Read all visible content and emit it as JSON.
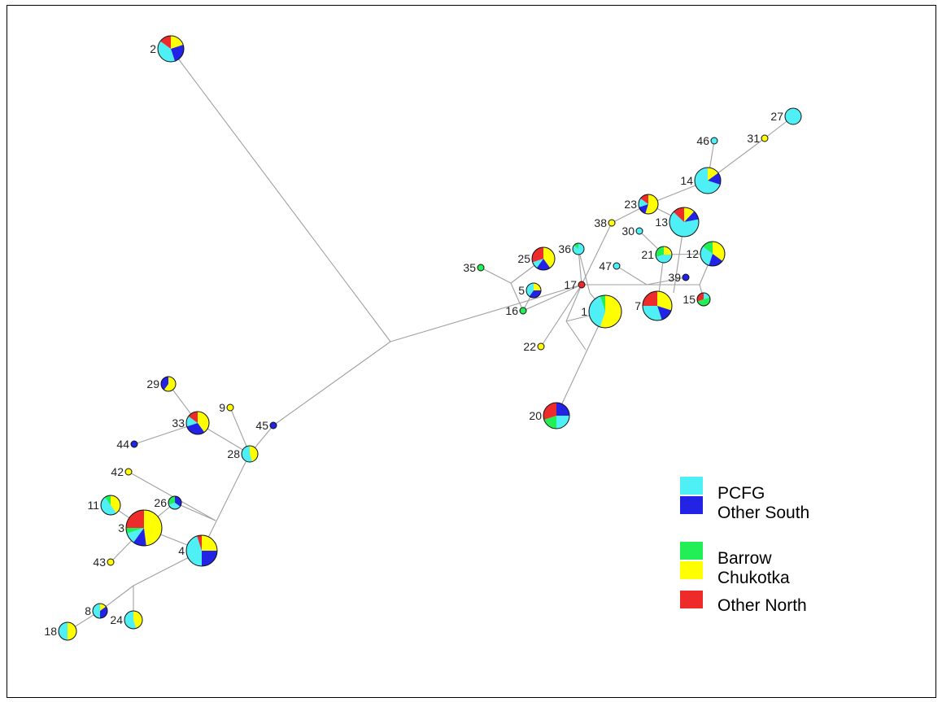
{
  "colors": {
    "PCFG": "#4ef0f6",
    "OtherSouth": "#2323e6",
    "Barrow": "#22ee55",
    "Chukotka": "#ffff00",
    "OtherNorth": "#ee2b2b"
  },
  "legend": [
    {
      "label": "PCFG",
      "color": "#4ef0f6"
    },
    {
      "label": "Other South",
      "color": "#2323e6"
    },
    {
      "label": "Barrow",
      "color": "#22ee55"
    },
    {
      "label": "Chukotka",
      "color": "#ffff00"
    },
    {
      "label": "Other North",
      "color": "#ee2b2b"
    }
  ],
  "nodes": [
    {
      "id": "2",
      "fracs": {
        "PCFG": 0.4,
        "OtherSouth": 0.25,
        "Chukotka": 0.2,
        "OtherNorth": 0.15
      }
    },
    {
      "id": "27",
      "fracs": {
        "PCFG": 1.0
      }
    },
    {
      "id": "46",
      "fracs": {
        "PCFG": 1.0
      }
    },
    {
      "id": "31",
      "fracs": {
        "Chukotka": 1.0
      }
    },
    {
      "id": "14",
      "fracs": {
        "PCFG": 0.7,
        "OtherSouth": 0.15,
        "Chukotka": 0.15
      }
    },
    {
      "id": "23",
      "fracs": {
        "Chukotka": 0.55,
        "OtherSouth": 0.15,
        "OtherNorth": 0.15,
        "PCFG": 0.15
      }
    },
    {
      "id": "38",
      "fracs": {
        "Chukotka": 1.0
      }
    },
    {
      "id": "13",
      "fracs": {
        "PCFG": 0.65,
        "OtherSouth": 0.1,
        "Chukotka": 0.12,
        "OtherNorth": 0.13
      }
    },
    {
      "id": "30",
      "fracs": {
        "PCFG": 1.0
      }
    },
    {
      "id": "36",
      "fracs": {
        "PCFG": 0.85,
        "Barrow": 0.15
      }
    },
    {
      "id": "25",
      "fracs": {
        "Chukotka": 0.4,
        "OtherSouth": 0.2,
        "PCFG": 0.1,
        "OtherNorth": 0.3
      }
    },
    {
      "id": "35",
      "fracs": {
        "Barrow": 1.0
      }
    },
    {
      "id": "21",
      "fracs": {
        "PCFG": 0.45,
        "Chukotka": 0.25,
        "Barrow": 0.3
      }
    },
    {
      "id": "12",
      "fracs": {
        "Chukotka": 0.35,
        "OtherSouth": 0.2,
        "PCFG": 0.3,
        "Barrow": 0.15
      }
    },
    {
      "id": "47",
      "fracs": {
        "PCFG": 1.0
      }
    },
    {
      "id": "39",
      "fracs": {
        "OtherSouth": 1.0
      }
    },
    {
      "id": "5",
      "fracs": {
        "Chukotka": 0.25,
        "OtherSouth": 0.35,
        "PCFG": 0.4
      }
    },
    {
      "id": "17",
      "fracs": {
        "OtherNorth": 1.0
      }
    },
    {
      "id": "16",
      "fracs": {
        "Barrow": 1.0
      }
    },
    {
      "id": "1",
      "fracs": {
        "Chukotka": 0.55,
        "PCFG": 0.4,
        "Barrow": 0.05
      }
    },
    {
      "id": "7",
      "fracs": {
        "Chukotka": 0.3,
        "OtherSouth": 0.15,
        "PCFG": 0.3,
        "OtherNorth": 0.25
      }
    },
    {
      "id": "15",
      "fracs": {
        "Barrow": 0.5,
        "OtherNorth": 0.3,
        "PCFG": 0.2
      }
    },
    {
      "id": "22",
      "fracs": {
        "Chukotka": 1.0
      }
    },
    {
      "id": "20",
      "fracs": {
        "Barrow": 0.2,
        "OtherSouth": 0.25,
        "PCFG": 0.25,
        "OtherNorth": 0.3
      }
    },
    {
      "id": "29",
      "fracs": {
        "Chukotka": 0.6,
        "OtherSouth": 0.4
      }
    },
    {
      "id": "9",
      "fracs": {
        "Chukotka": 1.0
      }
    },
    {
      "id": "33",
      "fracs": {
        "Chukotka": 0.4,
        "OtherSouth": 0.3,
        "PCFG": 0.15,
        "OtherNorth": 0.15
      }
    },
    {
      "id": "45",
      "fracs": {
        "OtherSouth": 1.0
      }
    },
    {
      "id": "44",
      "fracs": {
        "OtherSouth": 1.0
      }
    },
    {
      "id": "28",
      "fracs": {
        "Chukotka": 0.45,
        "PCFG": 0.55
      }
    },
    {
      "id": "42",
      "fracs": {
        "Chukotka": 1.0
      }
    },
    {
      "id": "11",
      "fracs": {
        "Chukotka": 0.4,
        "PCFG": 0.5,
        "Barrow": 0.1
      }
    },
    {
      "id": "26",
      "fracs": {
        "Barrow": 0.3,
        "OtherSouth": 0.35,
        "PCFG": 0.35
      }
    },
    {
      "id": "3",
      "fracs": {
        "Chukotka": 0.48,
        "OtherSouth": 0.12,
        "PCFG": 0.1,
        "OtherNorth": 0.25,
        "Barrow": 0.05
      }
    },
    {
      "id": "43",
      "fracs": {
        "Chukotka": 1.0
      }
    },
    {
      "id": "4",
      "fracs": {
        "Chukotka": 0.25,
        "OtherSouth": 0.25,
        "PCFG": 0.45,
        "OtherNorth": 0.05
      }
    },
    {
      "id": "8",
      "fracs": {
        "Chukotka": 0.15,
        "OtherSouth": 0.35,
        "PCFG": 0.5
      }
    },
    {
      "id": "24",
      "fracs": {
        "Chukotka": 0.45,
        "PCFG": 0.55
      }
    },
    {
      "id": "18",
      "fracs": {
        "Chukotka": 0.5,
        "PCFG": 0.5
      }
    }
  ]
}
